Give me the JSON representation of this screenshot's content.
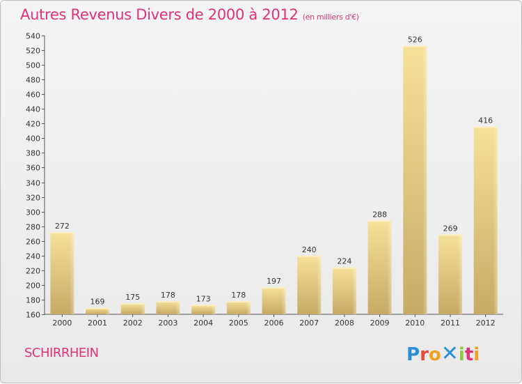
{
  "header": {
    "title": "Autres Revenus Divers de 2000 à 2012",
    "subtitle": "(en milliers d'€)"
  },
  "footer": {
    "commune": "SCHIRRHEIN",
    "logo_text": "Proxiti"
  },
  "colors": {
    "title": "#e0317a",
    "bar_top": "#f5df95",
    "bar_bottom": "#c8ad6a",
    "axis": "#555555"
  },
  "chart_data": {
    "type": "bar",
    "title": "Autres Revenus Divers de 2000 à 2012",
    "subtitle": "(en milliers d'€)",
    "categories": [
      "2000",
      "2001",
      "2002",
      "2003",
      "2004",
      "2005",
      "2006",
      "2007",
      "2008",
      "2009",
      "2010",
      "2011",
      "2012"
    ],
    "values": [
      272,
      169,
      175,
      178,
      173,
      178,
      197,
      240,
      224,
      288,
      526,
      269,
      416
    ],
    "ylim": [
      160,
      540
    ],
    "ytick_step": 20,
    "grid": false,
    "data_labels": true
  }
}
